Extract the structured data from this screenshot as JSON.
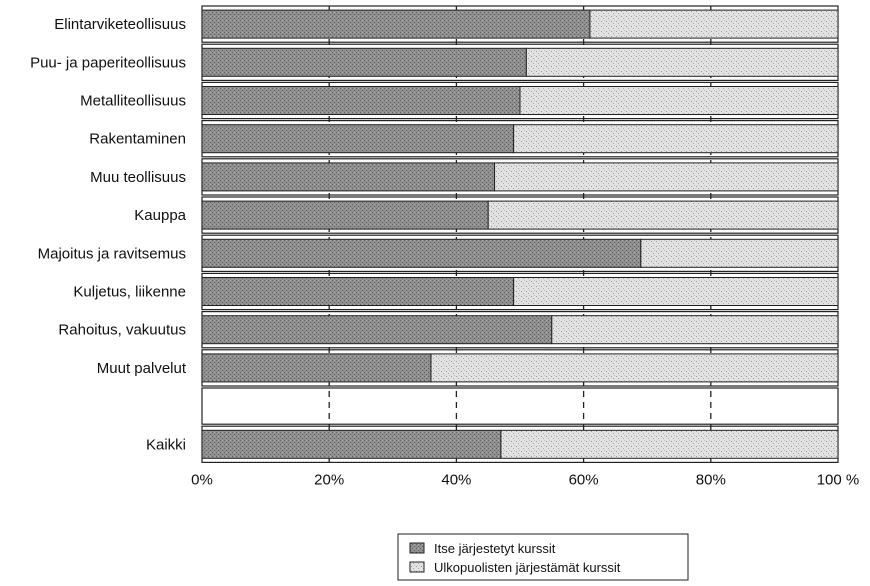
{
  "chart_data": {
    "type": "bar",
    "stacked": true,
    "orientation": "horizontal",
    "categories": [
      "Elintarviketeollisuus",
      "Puu- ja paperiteollisuus",
      "Metalliteollisuus",
      "Rakentaminen",
      "Muu teollisuus",
      "Kauppa",
      "Majoitus ja ravitsemus",
      "Kuljetus, liikenne",
      "Rahoitus, vakuutus",
      "Muut palvelut",
      "Kaikki"
    ],
    "series": [
      {
        "name": "Itse järjestetyt kurssit",
        "color": "#8f8f8f",
        "values": [
          61,
          51,
          50,
          49,
          46,
          45,
          69,
          49,
          55,
          36,
          47
        ]
      },
      {
        "name": "Ulkopuolisten järjestämät kurssit",
        "color": "#dedede",
        "values": [
          39,
          49,
          50,
          51,
          54,
          55,
          31,
          51,
          45,
          64,
          53
        ]
      }
    ],
    "xlim": [
      0,
      100
    ],
    "xticks": [
      "0%",
      "20%",
      "40%",
      "60%",
      "80%",
      "100 %"
    ],
    "grid": "vertical dashed",
    "legend_position": "bottom-center"
  }
}
